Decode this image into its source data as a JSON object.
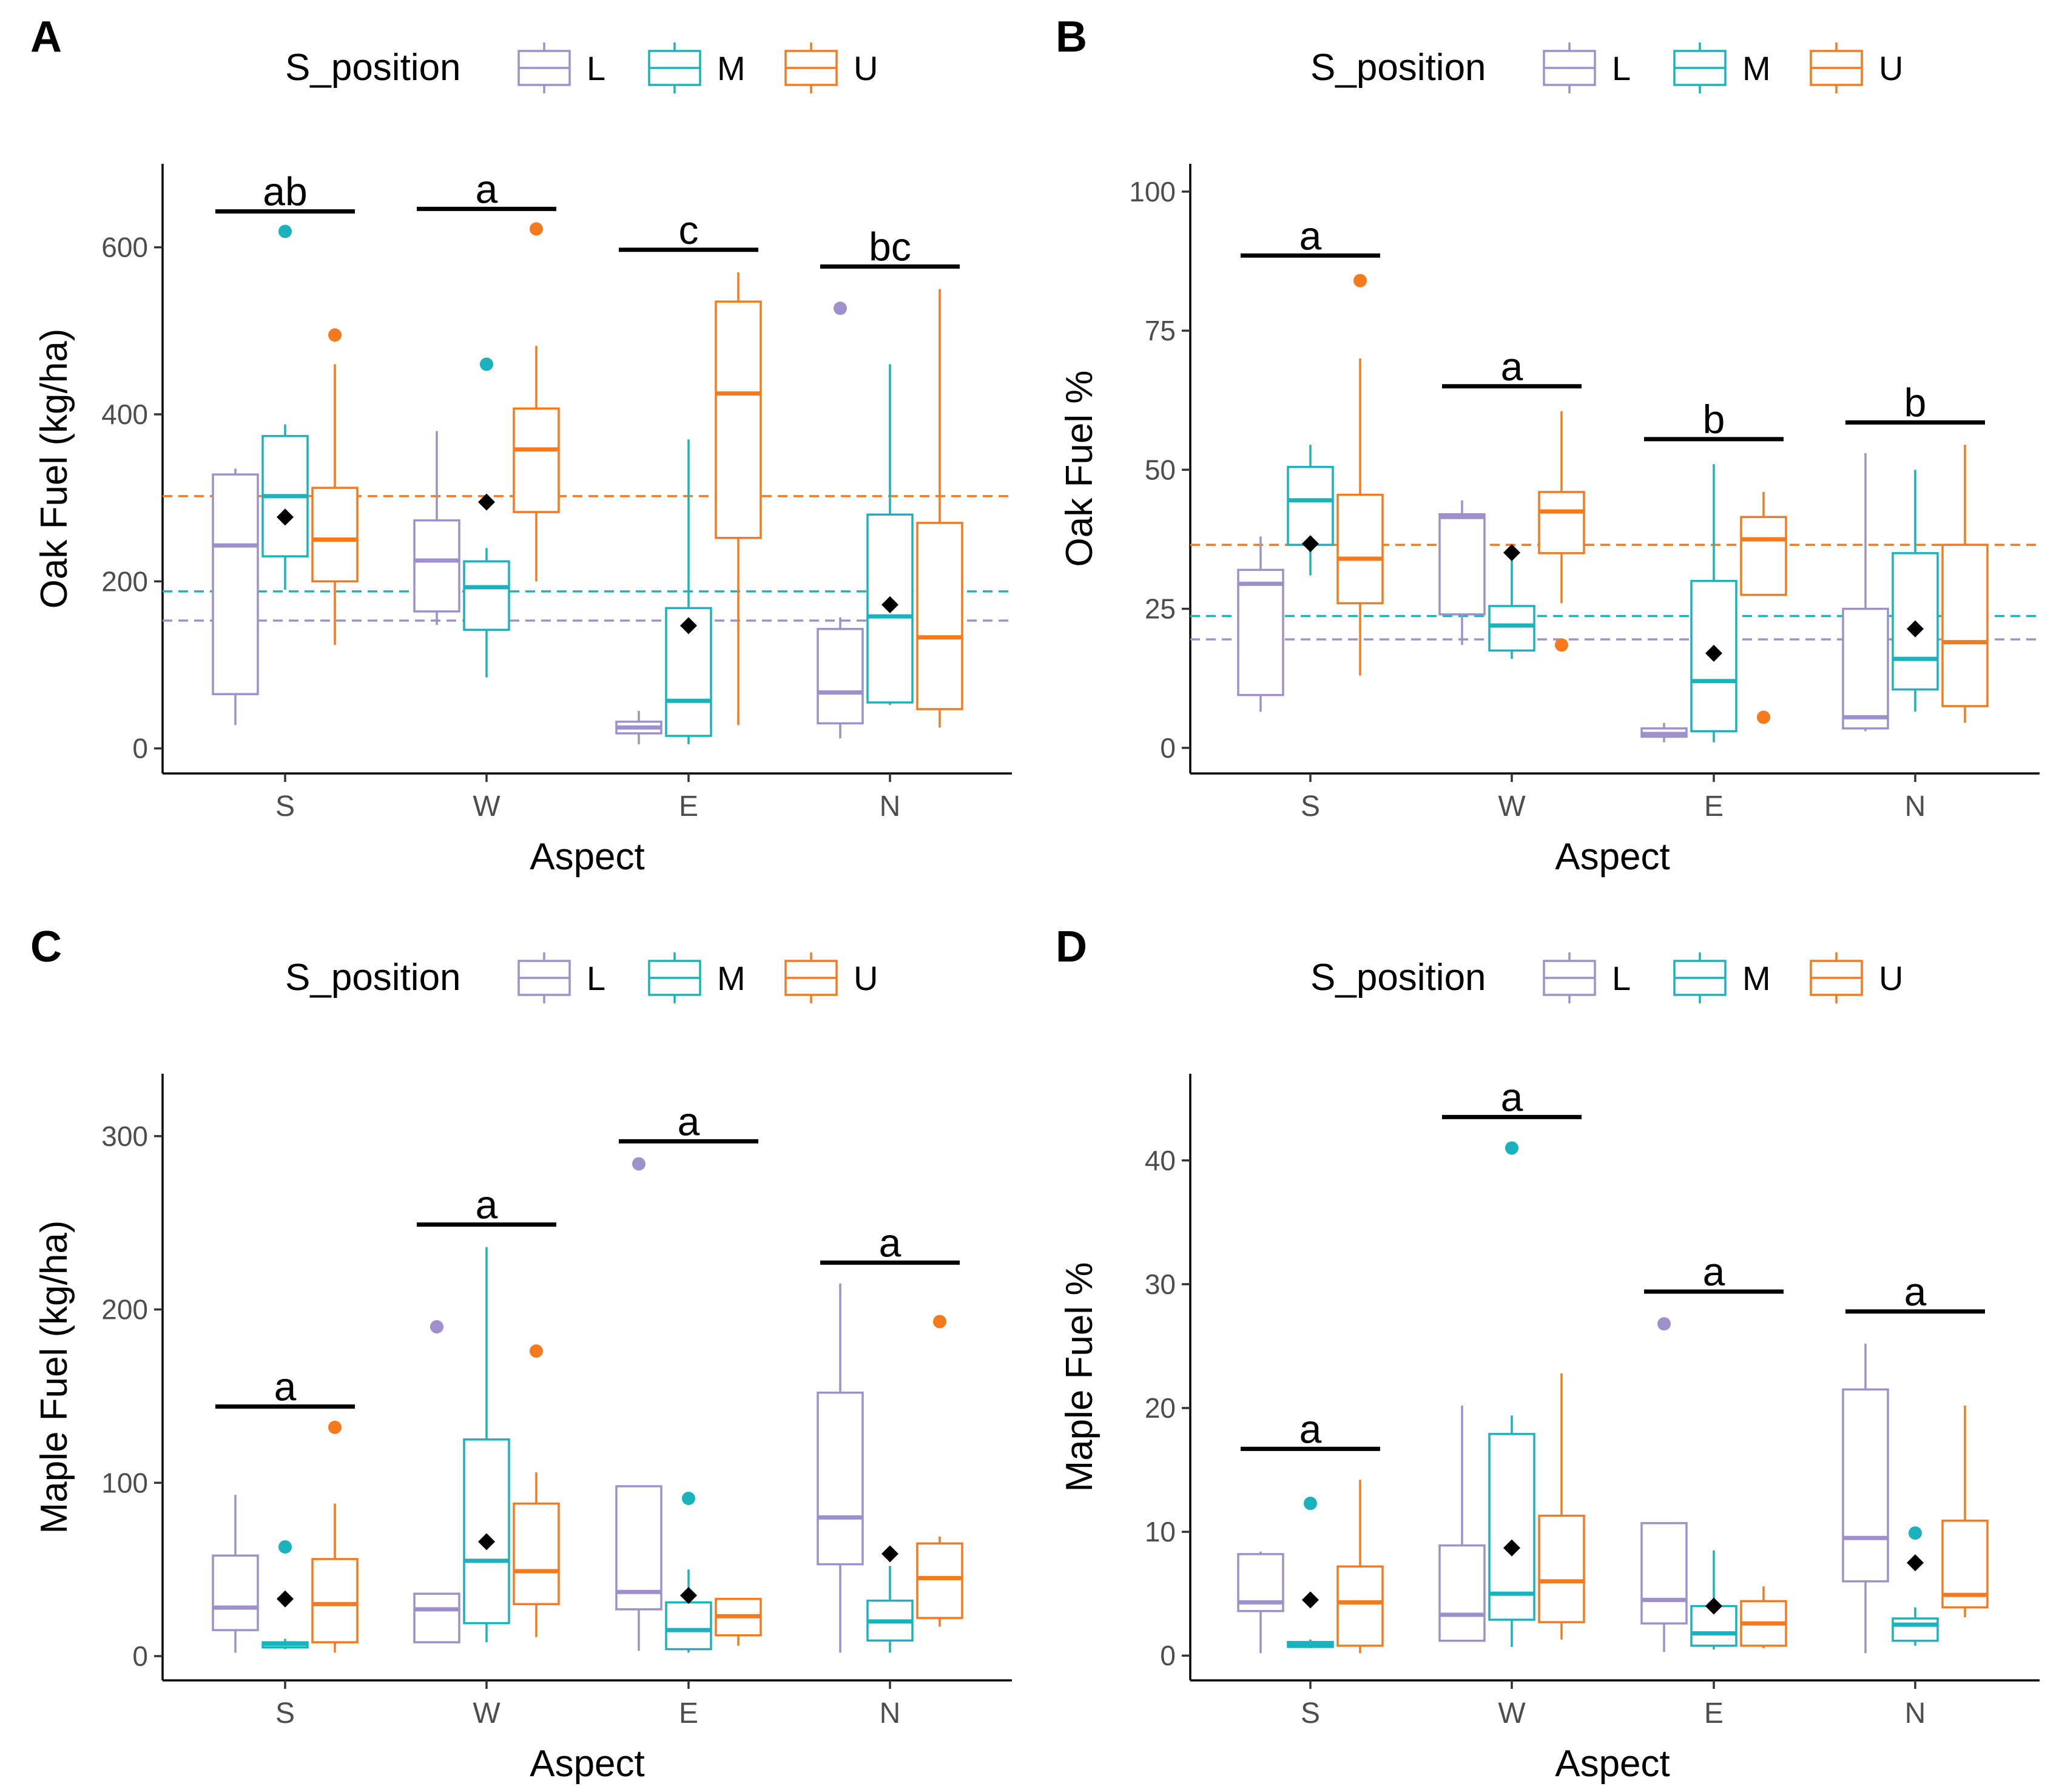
{
  "figure": {
    "background": "#ffffff"
  },
  "legend": {
    "title": "S_position",
    "levels": [
      "L",
      "M",
      "U"
    ],
    "colors": {
      "L": "#9e90cc",
      "M": "#1ab3bd",
      "U": "#f57a1e"
    }
  },
  "mean_marker_color": "#000000",
  "chart_data": [
    {
      "panel": "A",
      "type": "box",
      "title": "",
      "xlabel": "Aspect",
      "ylabel": "Oak Fuel (kg/ha)",
      "categories": [
        "S",
        "W",
        "E",
        "N"
      ],
      "ylim": [
        -30,
        700
      ],
      "yticks": [
        0,
        200,
        400,
        600
      ],
      "ytick_labels": [
        "0",
        "200",
        "400",
        "600"
      ],
      "reference_lines": [
        {
          "group": "U",
          "value": 302
        },
        {
          "group": "M",
          "value": 188
        },
        {
          "group": "L",
          "value": 153
        }
      ],
      "means": [
        {
          "category": "S",
          "value": 277
        },
        {
          "category": "W",
          "value": 295
        },
        {
          "category": "E",
          "value": 147
        },
        {
          "category": "N",
          "value": 172
        }
      ],
      "letters": [
        {
          "category": "S",
          "text": "ab",
          "y": 643
        },
        {
          "category": "W",
          "text": "a",
          "y": 646
        },
        {
          "category": "E",
          "text": "c",
          "y": 597
        },
        {
          "category": "N",
          "text": "bc",
          "y": 577
        }
      ],
      "boxes": [
        {
          "category": "S",
          "group": "L",
          "min": 28,
          "q1": 65,
          "median": 243,
          "q3": 328,
          "max": 335,
          "outliers": []
        },
        {
          "category": "S",
          "group": "M",
          "min": 190,
          "q1": 230,
          "median": 302,
          "q3": 374,
          "max": 388,
          "outliers": [
            619
          ]
        },
        {
          "category": "S",
          "group": "U",
          "min": 124,
          "q1": 200,
          "median": 250,
          "q3": 312,
          "max": 460,
          "outliers": [
            495
          ]
        },
        {
          "category": "W",
          "group": "L",
          "min": 148,
          "q1": 164,
          "median": 225,
          "q3": 273,
          "max": 380,
          "outliers": []
        },
        {
          "category": "W",
          "group": "M",
          "min": 85,
          "q1": 142,
          "median": 193,
          "q3": 224,
          "max": 240,
          "outliers": [
            460
          ]
        },
        {
          "category": "W",
          "group": "U",
          "min": 200,
          "q1": 283,
          "median": 358,
          "q3": 407,
          "max": 482,
          "outliers": [
            622
          ]
        },
        {
          "category": "E",
          "group": "L",
          "min": 5,
          "q1": 18,
          "median": 25,
          "q3": 32,
          "max": 45,
          "outliers": []
        },
        {
          "category": "E",
          "group": "M",
          "min": 5,
          "q1": 15,
          "median": 57,
          "q3": 168,
          "max": 370,
          "outliers": []
        },
        {
          "category": "E",
          "group": "U",
          "min": 28,
          "q1": 252,
          "median": 425,
          "q3": 535,
          "max": 570,
          "outliers": []
        },
        {
          "category": "N",
          "group": "L",
          "min": 12,
          "q1": 30,
          "median": 67,
          "q3": 143,
          "max": 157,
          "outliers": [
            527
          ]
        },
        {
          "category": "N",
          "group": "M",
          "min": 52,
          "q1": 55,
          "median": 158,
          "q3": 280,
          "max": 460,
          "outliers": []
        },
        {
          "category": "N",
          "group": "U",
          "min": 25,
          "q1": 47,
          "median": 133,
          "q3": 270,
          "max": 550,
          "outliers": []
        }
      ]
    },
    {
      "panel": "B",
      "type": "box",
      "title": "",
      "xlabel": "Aspect",
      "ylabel": "Oak Fuel %",
      "categories": [
        "S",
        "W",
        "E",
        "N"
      ],
      "ylim": [
        -4.6,
        105
      ],
      "yticks": [
        0,
        25,
        50,
        75,
        100
      ],
      "ytick_labels": [
        "0",
        "25",
        "50",
        "75",
        "100"
      ],
      "reference_lines": [
        {
          "group": "U",
          "value": 36.5
        },
        {
          "group": "M",
          "value": 23.7
        },
        {
          "group": "L",
          "value": 19.5
        }
      ],
      "means": [
        {
          "category": "S",
          "value": 36.7
        },
        {
          "category": "W",
          "value": 35.1
        },
        {
          "category": "E",
          "value": 17
        },
        {
          "category": "N",
          "value": 21.4
        }
      ],
      "letters": [
        {
          "category": "S",
          "text": "a",
          "y": 88.5
        },
        {
          "category": "W",
          "text": "a",
          "y": 65
        },
        {
          "category": "E",
          "text": "b",
          "y": 55.5
        },
        {
          "category": "N",
          "text": "b",
          "y": 58.5
        }
      ],
      "boxes": [
        {
          "category": "S",
          "group": "L",
          "min": 6.5,
          "q1": 9.5,
          "median": 29.5,
          "q3": 32,
          "max": 38,
          "outliers": []
        },
        {
          "category": "S",
          "group": "M",
          "min": 31,
          "q1": 36.5,
          "median": 44.5,
          "q3": 50.5,
          "max": 54.5,
          "outliers": []
        },
        {
          "category": "S",
          "group": "U",
          "min": 13,
          "q1": 26,
          "median": 34,
          "q3": 45.5,
          "max": 70,
          "outliers": [
            84
          ]
        },
        {
          "category": "W",
          "group": "L",
          "min": 18.5,
          "q1": 24,
          "median": 41.5,
          "q3": 42,
          "max": 44.5,
          "outliers": []
        },
        {
          "category": "W",
          "group": "M",
          "min": 16,
          "q1": 17.5,
          "median": 22,
          "q3": 25.5,
          "max": 34,
          "outliers": []
        },
        {
          "category": "W",
          "group": "U",
          "min": 26,
          "q1": 35,
          "median": 42.5,
          "q3": 46,
          "max": 60.5,
          "outliers": [
            18.5
          ]
        },
        {
          "category": "E",
          "group": "L",
          "min": 1,
          "q1": 2,
          "median": 2.5,
          "q3": 3.5,
          "max": 4.5,
          "outliers": []
        },
        {
          "category": "E",
          "group": "M",
          "min": 1,
          "q1": 3,
          "median": 12,
          "q3": 30,
          "max": 51,
          "outliers": []
        },
        {
          "category": "E",
          "group": "U",
          "min": 27.5,
          "q1": 27.5,
          "median": 37.5,
          "q3": 41.5,
          "max": 46,
          "outliers": [
            5.5
          ]
        },
        {
          "category": "N",
          "group": "L",
          "min": 3,
          "q1": 3.5,
          "median": 5.5,
          "q3": 25,
          "max": 53,
          "outliers": []
        },
        {
          "category": "N",
          "group": "M",
          "min": 6.5,
          "q1": 10.5,
          "median": 16,
          "q3": 35,
          "max": 50,
          "outliers": []
        },
        {
          "category": "N",
          "group": "U",
          "min": 4.5,
          "q1": 7.5,
          "median": 19,
          "q3": 36.5,
          "max": 54.5,
          "outliers": []
        }
      ]
    },
    {
      "panel": "C",
      "type": "box",
      "title": "",
      "xlabel": "Aspect",
      "ylabel": "Maple Fuel (kg/ha)",
      "categories": [
        "S",
        "W",
        "E",
        "N"
      ],
      "ylim": [
        -14,
        336
      ],
      "yticks": [
        0,
        100,
        200,
        300
      ],
      "ytick_labels": [
        "0",
        "100",
        "200",
        "300"
      ],
      "reference_lines": [],
      "means": [
        {
          "category": "S",
          "value": 33
        },
        {
          "category": "W",
          "value": 66
        },
        {
          "category": "E",
          "value": 35
        },
        {
          "category": "N",
          "value": 59
        }
      ],
      "letters": [
        {
          "category": "S",
          "text": "a",
          "y": 144
        },
        {
          "category": "W",
          "text": "a",
          "y": 249
        },
        {
          "category": "E",
          "text": "a",
          "y": 297
        },
        {
          "category": "N",
          "text": "a",
          "y": 227
        }
      ],
      "boxes": [
        {
          "category": "S",
          "group": "L",
          "min": 2,
          "q1": 15,
          "median": 28,
          "q3": 58,
          "max": 93,
          "outliers": []
        },
        {
          "category": "S",
          "group": "M",
          "min": 4,
          "q1": 5,
          "median": 7,
          "q3": 8,
          "max": 10,
          "outliers": [
            63
          ]
        },
        {
          "category": "S",
          "group": "U",
          "min": 2,
          "q1": 8,
          "median": 30,
          "q3": 56,
          "max": 88,
          "outliers": [
            132
          ]
        },
        {
          "category": "W",
          "group": "L",
          "min": 8,
          "q1": 8,
          "median": 27,
          "q3": 36,
          "max": 36,
          "outliers": [
            190
          ]
        },
        {
          "category": "W",
          "group": "M",
          "min": 8,
          "q1": 19,
          "median": 55,
          "q3": 125,
          "max": 236,
          "outliers": []
        },
        {
          "category": "W",
          "group": "U",
          "min": 11,
          "q1": 30,
          "median": 49,
          "q3": 88,
          "max": 106,
          "outliers": [
            176
          ]
        },
        {
          "category": "E",
          "group": "L",
          "min": 3,
          "q1": 27,
          "median": 37,
          "q3": 98,
          "max": 98,
          "outliers": [
            284
          ]
        },
        {
          "category": "E",
          "group": "M",
          "min": 2,
          "q1": 4,
          "median": 15,
          "q3": 31,
          "max": 50,
          "outliers": [
            91
          ]
        },
        {
          "category": "E",
          "group": "U",
          "min": 6,
          "q1": 12,
          "median": 23,
          "q3": 33,
          "max": 33,
          "outliers": []
        },
        {
          "category": "N",
          "group": "L",
          "min": 2,
          "q1": 53,
          "median": 80,
          "q3": 152,
          "max": 215,
          "outliers": []
        },
        {
          "category": "N",
          "group": "M",
          "min": 2,
          "q1": 9,
          "median": 20,
          "q3": 32,
          "max": 52,
          "outliers": []
        },
        {
          "category": "N",
          "group": "U",
          "min": 17,
          "q1": 22,
          "median": 45,
          "q3": 65,
          "max": 69,
          "outliers": [
            193
          ]
        }
      ]
    },
    {
      "panel": "D",
      "type": "box",
      "title": "",
      "xlabel": "Aspect",
      "ylabel": "Maple Fuel %",
      "categories": [
        "S",
        "W",
        "E",
        "N"
      ],
      "ylim": [
        -2,
        47
      ],
      "yticks": [
        0,
        10,
        20,
        30,
        40
      ],
      "ytick_labels": [
        "0",
        "10",
        "20",
        "30",
        "40"
      ],
      "reference_lines": [],
      "means": [
        {
          "category": "S",
          "value": 4.5
        },
        {
          "category": "W",
          "value": 8.7
        },
        {
          "category": "E",
          "value": 4
        },
        {
          "category": "N",
          "value": 7.5
        }
      ],
      "letters": [
        {
          "category": "S",
          "text": "a",
          "y": 16.7
        },
        {
          "category": "W",
          "text": "a",
          "y": 43.5
        },
        {
          "category": "E",
          "text": "a",
          "y": 29.4
        },
        {
          "category": "N",
          "text": "a",
          "y": 27.8
        }
      ],
      "boxes": [
        {
          "category": "S",
          "group": "L",
          "min": 0.2,
          "q1": 3.6,
          "median": 4.3,
          "q3": 8.2,
          "max": 8.4,
          "outliers": []
        },
        {
          "category": "S",
          "group": "M",
          "min": 0.6,
          "q1": 0.7,
          "median": 0.9,
          "q3": 1.1,
          "max": 1.3,
          "outliers": [
            12.3
          ]
        },
        {
          "category": "S",
          "group": "U",
          "min": 0.2,
          "q1": 0.8,
          "median": 4.3,
          "q3": 7.2,
          "max": 14.2,
          "outliers": []
        },
        {
          "category": "W",
          "group": "L",
          "min": 1.2,
          "q1": 1.2,
          "median": 3.3,
          "q3": 8.9,
          "max": 20.2,
          "outliers": []
        },
        {
          "category": "W",
          "group": "M",
          "min": 0.7,
          "q1": 2.9,
          "median": 5,
          "q3": 17.9,
          "max": 19.4,
          "outliers": [
            41
          ]
        },
        {
          "category": "W",
          "group": "U",
          "min": 1.3,
          "q1": 2.7,
          "median": 6,
          "q3": 11.3,
          "max": 22.8,
          "outliers": []
        },
        {
          "category": "E",
          "group": "L",
          "min": 0.3,
          "q1": 2.6,
          "median": 4.5,
          "q3": 10.7,
          "max": 10.7,
          "outliers": [
            26.8
          ]
        },
        {
          "category": "E",
          "group": "M",
          "min": 0.5,
          "q1": 0.8,
          "median": 1.8,
          "q3": 4,
          "max": 8.5,
          "outliers": []
        },
        {
          "category": "E",
          "group": "U",
          "min": 0.6,
          "q1": 0.8,
          "median": 2.6,
          "q3": 4.4,
          "max": 5.6,
          "outliers": []
        },
        {
          "category": "N",
          "group": "L",
          "min": 0.2,
          "q1": 6,
          "median": 9.5,
          "q3": 21.5,
          "max": 25.2,
          "outliers": []
        },
        {
          "category": "N",
          "group": "M",
          "min": 0.8,
          "q1": 1.2,
          "median": 2.5,
          "q3": 3,
          "max": 3.9,
          "outliers": [
            9.9
          ]
        },
        {
          "category": "N",
          "group": "U",
          "min": 3.1,
          "q1": 3.9,
          "median": 4.9,
          "q3": 10.9,
          "max": 20.2,
          "outliers": []
        }
      ]
    }
  ]
}
